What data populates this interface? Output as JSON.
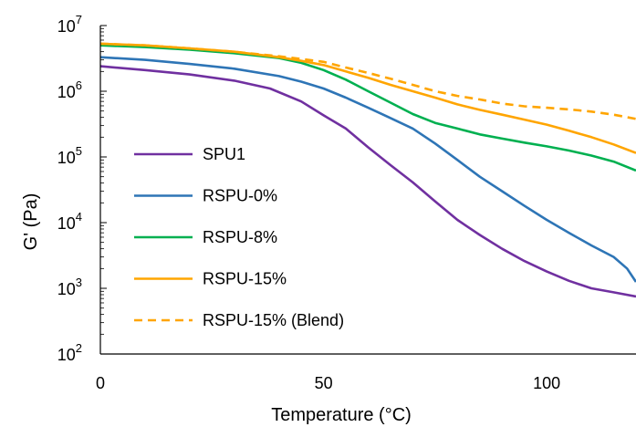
{
  "chart_data": {
    "type": "line",
    "xlabel": "Temperature  (°C)",
    "ylabel": "G' (Pa)",
    "xlim": [
      0,
      120
    ],
    "ylim_log10": [
      2,
      7
    ],
    "y_scale": "log",
    "x_ticks": [
      {
        "value": 0,
        "label": "0"
      },
      {
        "value": 50,
        "label": "50"
      },
      {
        "value": 100,
        "label": "100"
      }
    ],
    "y_ticks": [
      {
        "value": 100,
        "base": "10",
        "exp": "2"
      },
      {
        "value": 1000,
        "base": "10",
        "exp": "3"
      },
      {
        "value": 10000,
        "base": "10",
        "exp": "4"
      },
      {
        "value": 100000,
        "base": "10",
        "exp": "5"
      },
      {
        "value": 1000000,
        "base": "10",
        "exp": "6"
      },
      {
        "value": 10000000,
        "base": "10",
        "exp": "7"
      }
    ],
    "legend_position": "left",
    "series": [
      {
        "name": "SPU1",
        "color": "#7030a0",
        "dash": "solid",
        "x": [
          0,
          10,
          20,
          30,
          38,
          45,
          50,
          55,
          60,
          65,
          70,
          75,
          80,
          85,
          90,
          95,
          100,
          105,
          110,
          115,
          120
        ],
        "y": [
          2400000,
          2100000,
          1800000,
          1450000,
          1100000,
          700000,
          430000,
          270000,
          140000,
          75000,
          41000,
          21000,
          11000,
          6500,
          4000,
          2600,
          1800,
          1300,
          1000,
          870,
          750
        ]
      },
      {
        "name": "RSPU-0%",
        "color": "#2e75b6",
        "dash": "solid",
        "x": [
          0,
          10,
          20,
          30,
          40,
          45,
          50,
          55,
          60,
          65,
          70,
          75,
          80,
          85,
          90,
          95,
          100,
          105,
          110,
          115,
          118,
          120
        ],
        "y": [
          3300000,
          3000000,
          2600000,
          2200000,
          1700000,
          1400000,
          1100000,
          800000,
          560000,
          390000,
          270000,
          160000,
          90000,
          50000,
          30000,
          18000,
          11000,
          7000,
          4500,
          3000,
          2000,
          1250
        ]
      },
      {
        "name": "RSPU-8%",
        "color": "#00b050",
        "dash": "solid",
        "x": [
          0,
          10,
          20,
          30,
          40,
          45,
          50,
          55,
          60,
          65,
          70,
          75,
          80,
          85,
          90,
          95,
          100,
          105,
          110,
          115,
          120
        ],
        "y": [
          5000000,
          4700000,
          4300000,
          3800000,
          3200000,
          2700000,
          2100000,
          1500000,
          1000000,
          670000,
          450000,
          330000,
          270000,
          220000,
          190000,
          165000,
          145000,
          125000,
          105000,
          85000,
          62000
        ]
      },
      {
        "name": "RSPU-15%",
        "color": "#ffa500",
        "dash": "solid",
        "x": [
          0,
          10,
          20,
          30,
          40,
          45,
          50,
          55,
          60,
          65,
          70,
          75,
          80,
          85,
          90,
          95,
          100,
          105,
          110,
          115,
          120
        ],
        "y": [
          5300000,
          5000000,
          4500000,
          4000000,
          3300000,
          2900000,
          2500000,
          2000000,
          1600000,
          1250000,
          1000000,
          800000,
          630000,
          520000,
          440000,
          370000,
          310000,
          250000,
          200000,
          155000,
          115000
        ]
      },
      {
        "name": "RSPU-15% (Blend)",
        "color": "#ffa500",
        "dash": "dashed",
        "x": [
          0,
          10,
          20,
          30,
          40,
          45,
          50,
          55,
          60,
          65,
          70,
          75,
          80,
          85,
          90,
          95,
          100,
          105,
          110,
          115,
          120
        ],
        "y": [
          5300000,
          5000000,
          4500000,
          4000000,
          3400000,
          3100000,
          2800000,
          2300000,
          1900000,
          1550000,
          1250000,
          1000000,
          850000,
          750000,
          650000,
          590000,
          560000,
          530000,
          490000,
          440000,
          380000
        ]
      }
    ]
  }
}
